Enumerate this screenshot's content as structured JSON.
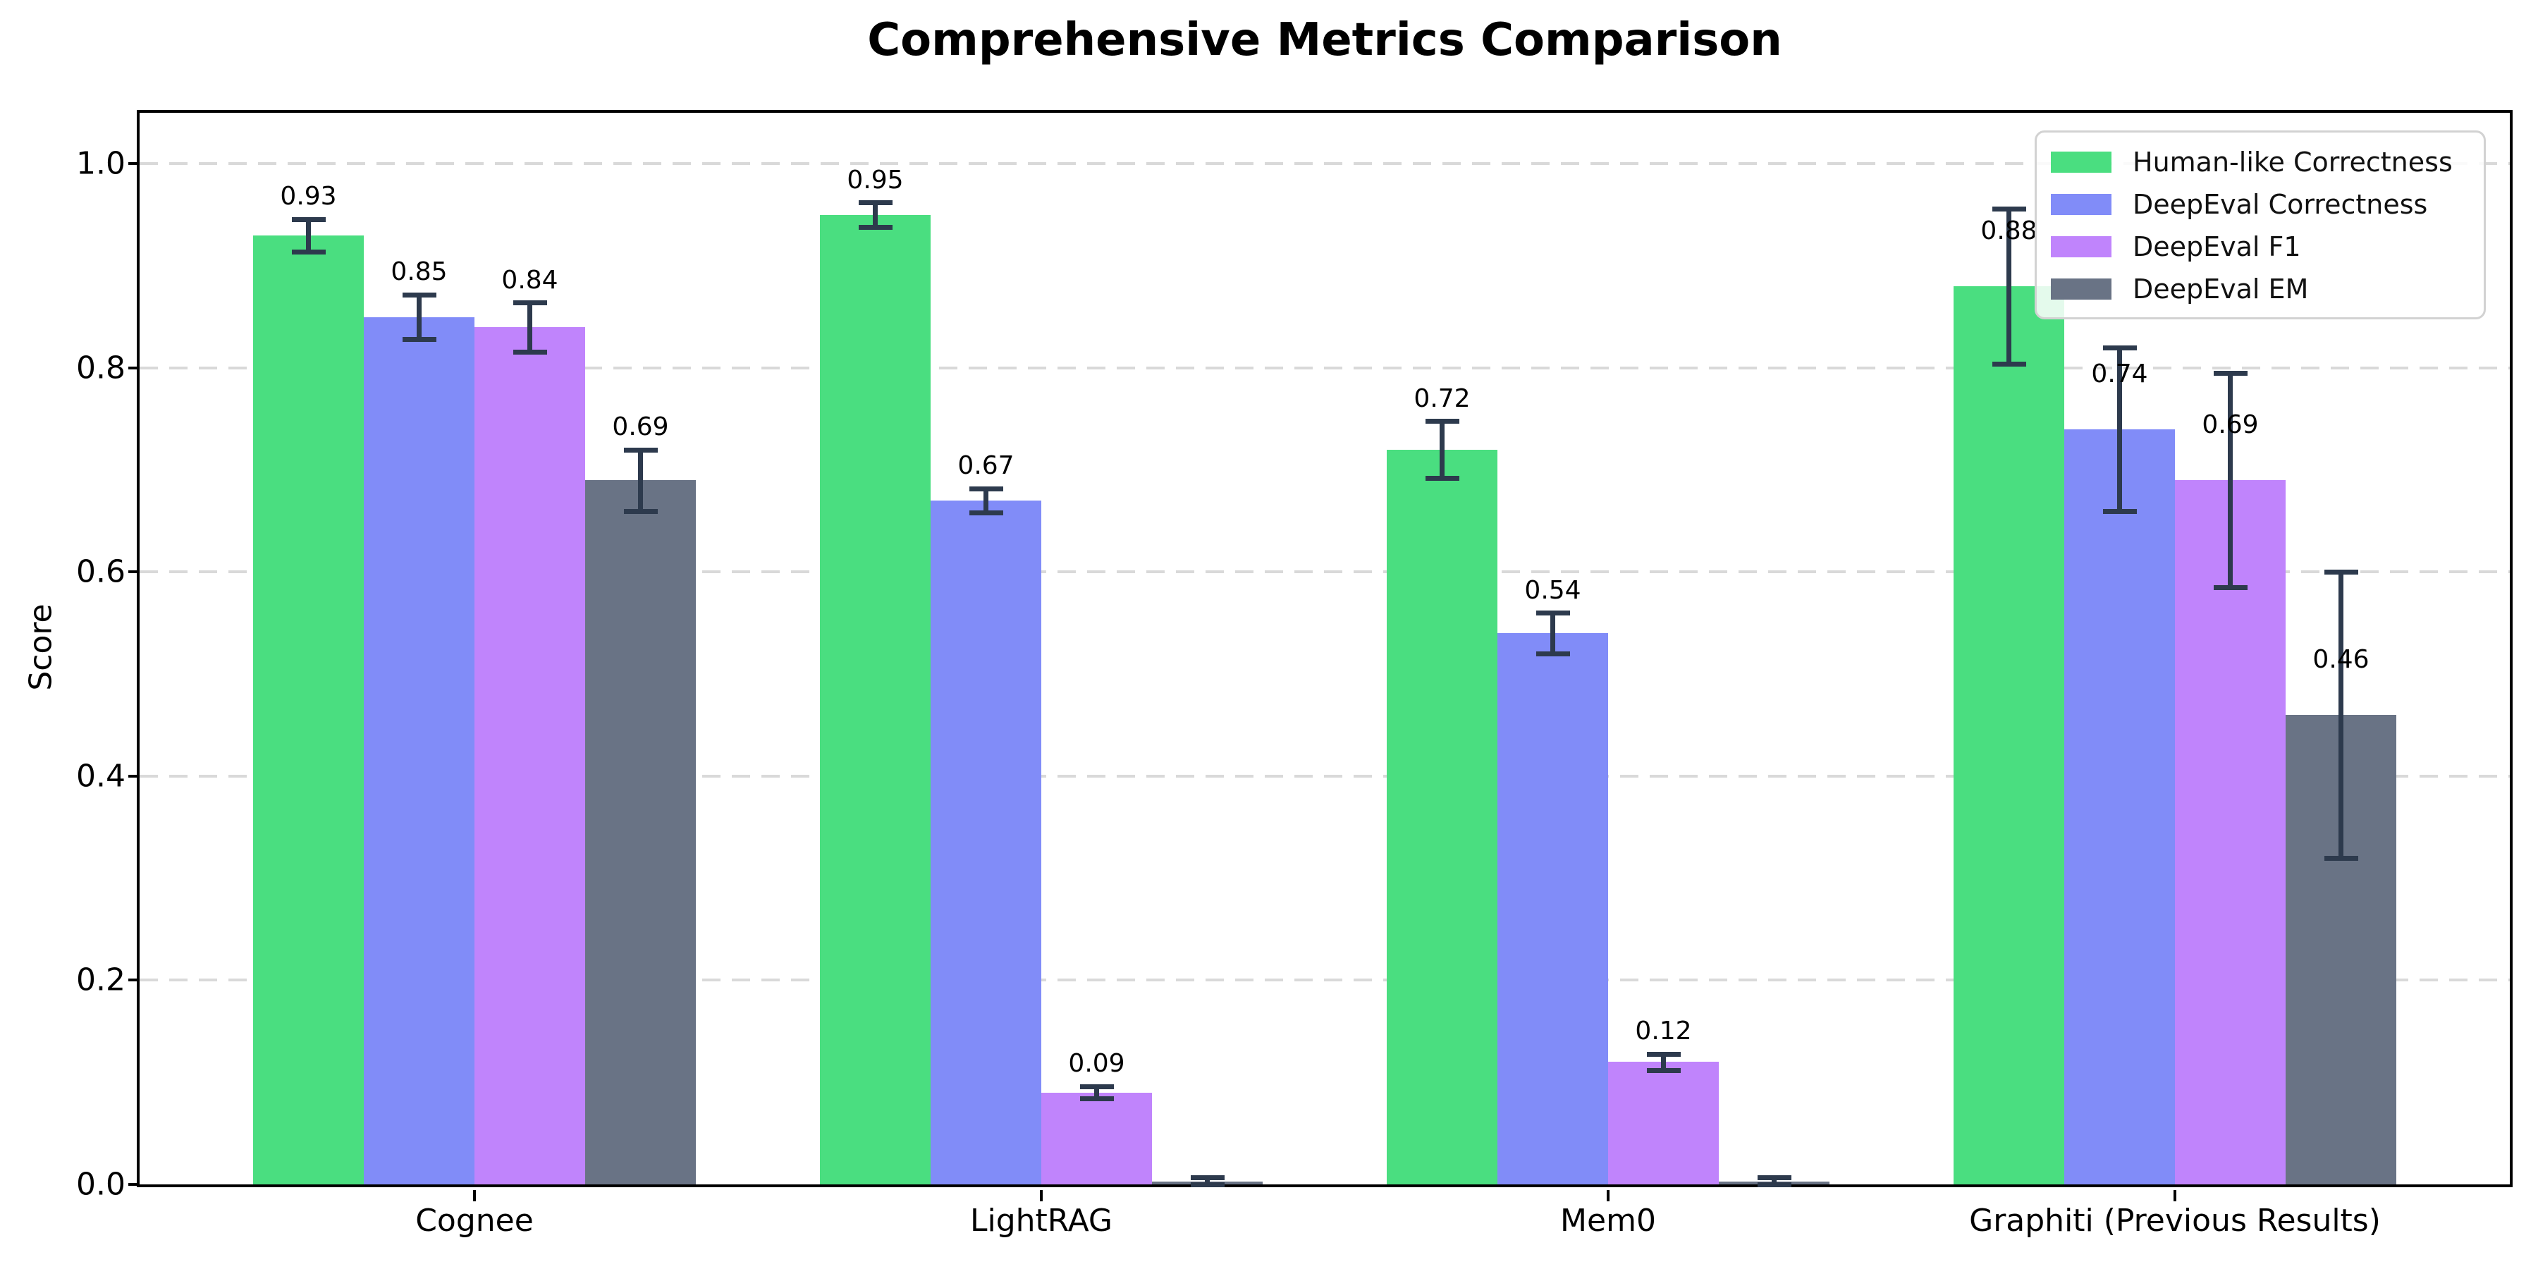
{
  "title": "Comprehensive Metrics Comparison",
  "ylabel": "Score",
  "chart_data": {
    "type": "bar",
    "title": "Comprehensive Metrics Comparison",
    "xlabel": "",
    "ylabel": "Score",
    "categories": [
      "Cognee",
      "LightRAG",
      "Mem0",
      "Graphiti (Previous Results)"
    ],
    "series": [
      {
        "name": "Human-like Correctness",
        "color": "#4ade80",
        "values": [
          0.93,
          0.95,
          0.72,
          0.88
        ],
        "errors": [
          0.016,
          0.012,
          0.028,
          0.076
        ],
        "labels": [
          "0.93",
          "0.95",
          "0.72",
          "0.88"
        ]
      },
      {
        "name": "DeepEval Correctness",
        "color": "#818cf8",
        "values": [
          0.85,
          0.67,
          0.54,
          0.74
        ],
        "errors": [
          0.022,
          0.012,
          0.02,
          0.08
        ],
        "labels": [
          "0.85",
          "0.67",
          "0.54",
          "0.74"
        ]
      },
      {
        "name": "DeepEval F1",
        "color": "#c084fc",
        "values": [
          0.84,
          0.09,
          0.12,
          0.69
        ],
        "errors": [
          0.024,
          0.006,
          0.008,
          0.105
        ],
        "labels": [
          "0.84",
          "0.09",
          "0.12",
          "0.69"
        ]
      },
      {
        "name": "DeepEval EM",
        "color": "#697385",
        "values": [
          0.69,
          0.003,
          0.003,
          0.46
        ],
        "errors": [
          0.03,
          0.004,
          0.004,
          0.14
        ],
        "labels": [
          "0.69",
          "",
          "",
          "0.46"
        ]
      }
    ],
    "yticks": [
      {
        "value": 0.0,
        "label": "0.0"
      },
      {
        "value": 0.2,
        "label": "0.2"
      },
      {
        "value": 0.4,
        "label": "0.4"
      },
      {
        "value": 0.6,
        "label": "0.6"
      },
      {
        "value": 0.8,
        "label": "0.8"
      },
      {
        "value": 1.0,
        "label": "1.0"
      }
    ],
    "ylim": [
      0,
      1.05
    ],
    "grid": "dashed-horizontal",
    "legend_position": "upper-right",
    "error_bar_color": "#2d3a4d",
    "axis_color": "#000000",
    "gridline_color": "#d9d9d9"
  }
}
